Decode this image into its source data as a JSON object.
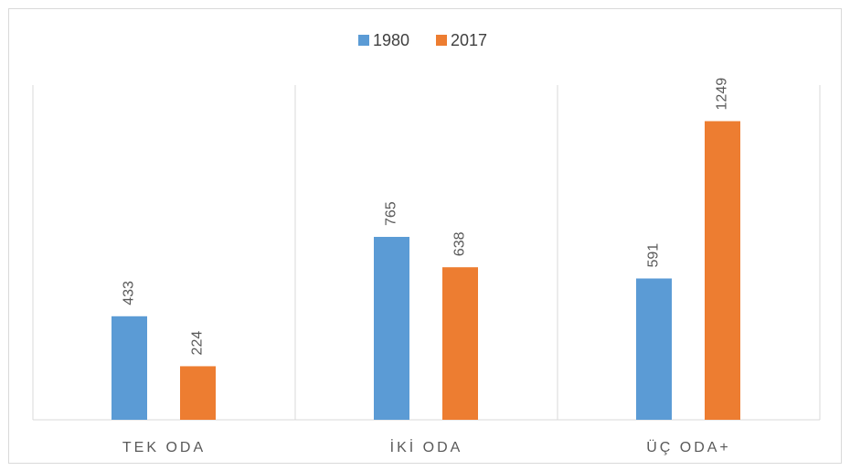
{
  "chart_data": {
    "type": "bar",
    "categories": [
      "TEK ODA",
      "İKİ ODA",
      "ÜÇ ODA+"
    ],
    "series": [
      {
        "name": "1980",
        "color": "#5b9bd5",
        "values": [
          433,
          765,
          591
        ]
      },
      {
        "name": "2017",
        "color": "#ed7d31",
        "values": [
          224,
          638,
          1249
        ]
      }
    ],
    "ylim": [
      0,
      1400
    ],
    "legend": "top"
  }
}
